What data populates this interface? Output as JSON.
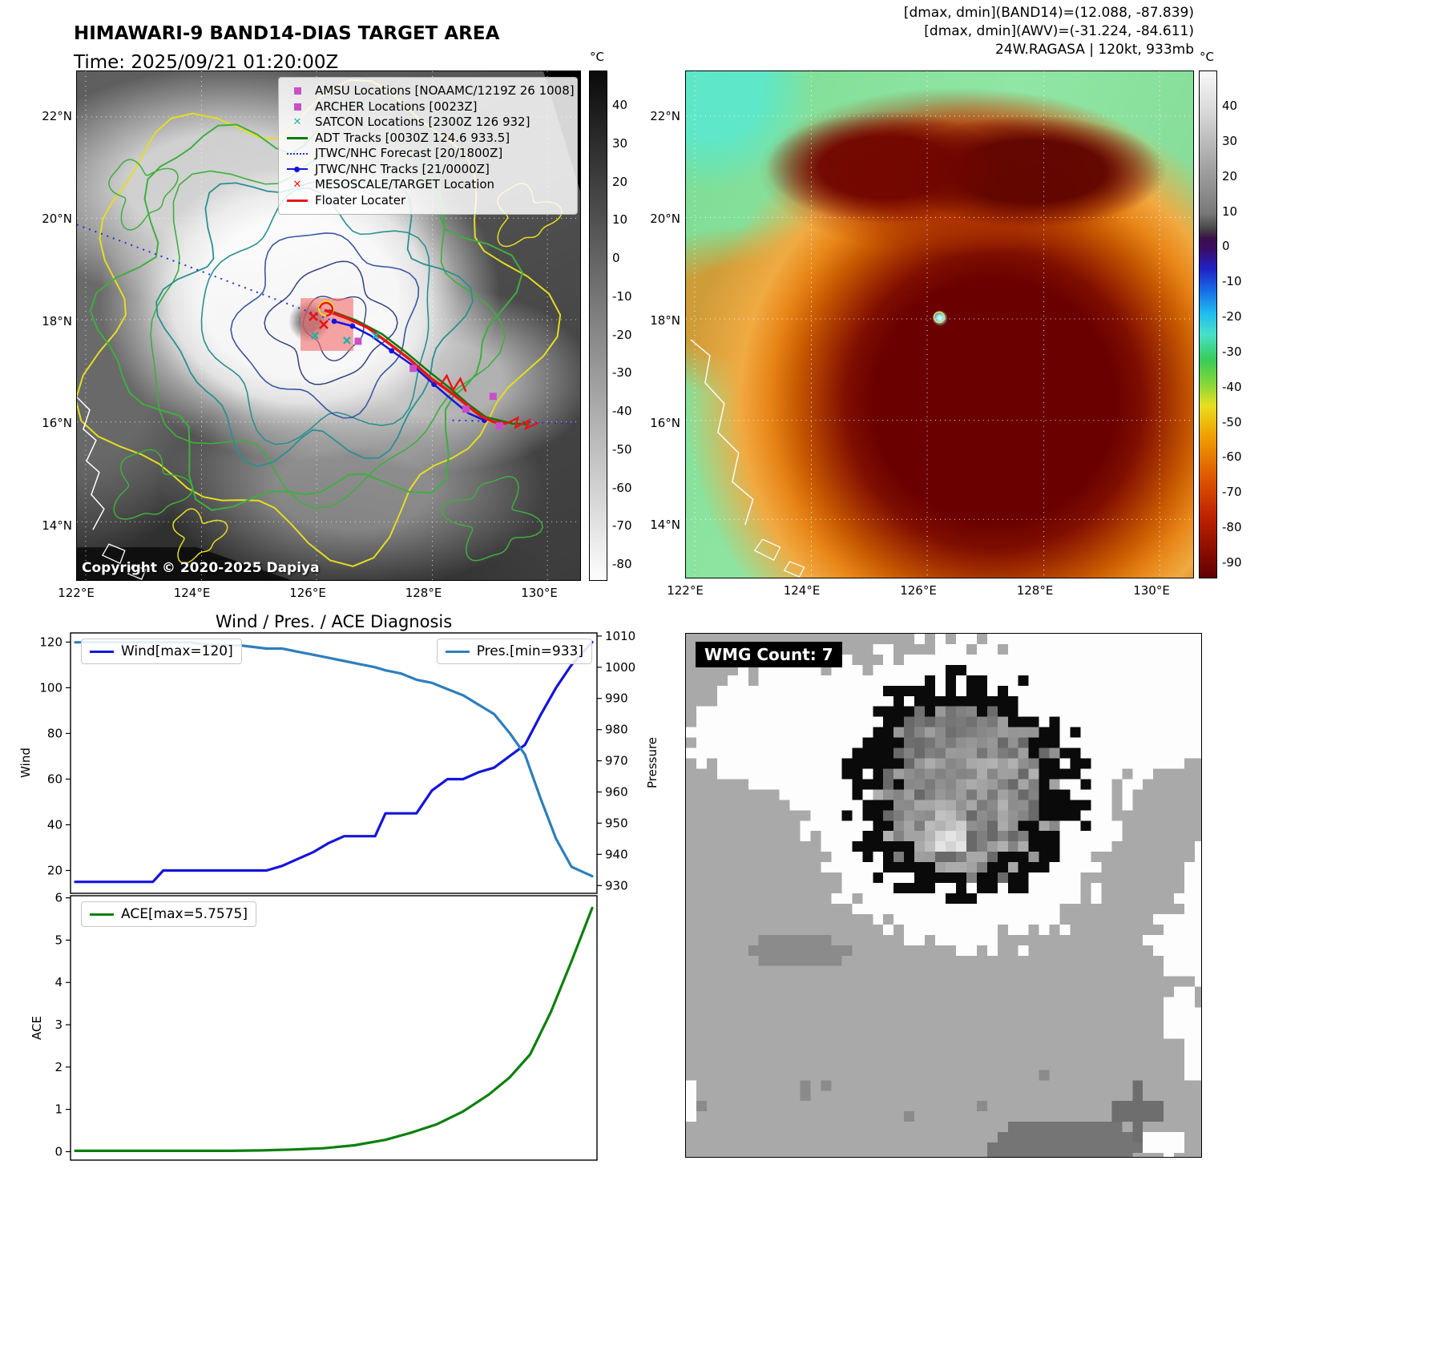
{
  "panelA": {
    "title": "HIMAWARI-9 BAND14-DIAS TARGET AREA",
    "time": "Time: 2025/09/21 01:20:00Z",
    "copyright": "Copyright © 2020-2025 Dapiya",
    "lat_ticks": [
      "22°N",
      "20°N",
      "18°N",
      "16°N",
      "14°N"
    ],
    "lon_ticks": [
      "122°E",
      "124°E",
      "126°E",
      "128°E",
      "130°E"
    ],
    "colorbar": {
      "unit": "°C",
      "ticks": [
        "40",
        "30",
        "20",
        "10",
        "0",
        "-10",
        "-20",
        "-30",
        "-40",
        "-50",
        "-60",
        "-70",
        "-80"
      ]
    },
    "legend": {
      "items": [
        {
          "label": "AMSU Locations [NOAAMC/1219Z 26 1008]",
          "marker": "square",
          "color": "#c94fc9"
        },
        {
          "label": "ARCHER Locations [0023Z]",
          "marker": "square",
          "color": "#c94fc9"
        },
        {
          "label": "SATCON Locations [2300Z 126 932]",
          "marker": "x",
          "color": "#20b2aa"
        },
        {
          "label": "ADT Tracks [0030Z 124.6 933.5]",
          "marker": "line",
          "color": "#0a7a0a"
        },
        {
          "label": "JTWC/NHC Forecast [20/1800Z]",
          "marker": "dotted",
          "color": "#2233cc"
        },
        {
          "label": "JTWC/NHC Tracks [21/0000Z]",
          "marker": "line-dot",
          "color": "#1414dc"
        },
        {
          "label": "MESOSCALE/TARGET Location",
          "marker": "x",
          "color": "#e81515"
        },
        {
          "label": "Floater Locater",
          "marker": "line",
          "color": "#e81515"
        }
      ]
    }
  },
  "panelB": {
    "title_lines": [
      "[dmax, dmin](BAND14)=(12.088, -87.839)",
      "[dmax, dmin](AWV)=(-31.224, -84.611)",
      "24W.RAGASA | 120kt, 933mb"
    ],
    "lat_ticks": [
      "22°N",
      "20°N",
      "18°N",
      "16°N",
      "14°N"
    ],
    "lon_ticks": [
      "122°E",
      "124°E",
      "126°E",
      "128°E",
      "130°E"
    ],
    "colorbar": {
      "unit": "°C",
      "ticks": [
        "40",
        "30",
        "20",
        "10",
        "0",
        "-10",
        "-20",
        "-30",
        "-40",
        "-50",
        "-60",
        "-70",
        "-80",
        "-90"
      ]
    }
  },
  "panelD": {
    "badge": "WMG Count: 7"
  },
  "chart_data": {
    "type": "line",
    "title": "Wind / Pres. / ACE Diagnosis",
    "charts": [
      {
        "name": "wind_pressure",
        "ylabel_left": "Wind",
        "ylabel_right": "Pressure",
        "ylim_left": [
          10,
          124
        ],
        "ylim_right": [
          927.5,
          1011
        ],
        "yticks_left": [
          20,
          40,
          60,
          80,
          100,
          120
        ],
        "yticks_right": [
          930,
          940,
          950,
          960,
          970,
          980,
          990,
          1000,
          1010
        ],
        "series": [
          {
            "name": "Wind[max=120]",
            "color": "#1414dc",
            "axis": "left",
            "x": [
              0,
              0.05,
              0.1,
              0.15,
              0.17,
              0.22,
              0.27,
              0.32,
              0.37,
              0.4,
              0.43,
              0.46,
              0.49,
              0.52,
              0.55,
              0.58,
              0.6,
              0.63,
              0.66,
              0.69,
              0.72,
              0.75,
              0.78,
              0.81,
              0.84,
              0.87,
              0.9,
              0.93,
              0.96,
              1.0
            ],
            "y": [
              15,
              15,
              15,
              15,
              20,
              20,
              20,
              20,
              20,
              22,
              25,
              28,
              32,
              35,
              35,
              35,
              45,
              45,
              45,
              55,
              60,
              60,
              63,
              65,
              70,
              75,
              88,
              100,
              110,
              120
            ]
          },
          {
            "name": "Pres.[min=933]",
            "color": "#2e7ebc",
            "axis": "right",
            "x": [
              0,
              0.05,
              0.1,
              0.15,
              0.17,
              0.22,
              0.27,
              0.32,
              0.37,
              0.4,
              0.43,
              0.46,
              0.49,
              0.52,
              0.55,
              0.58,
              0.6,
              0.63,
              0.66,
              0.69,
              0.72,
              0.75,
              0.78,
              0.81,
              0.84,
              0.87,
              0.9,
              0.93,
              0.96,
              1.0
            ],
            "y": [
              1008,
              1008,
              1008,
              1008,
              1008,
              1008,
              1007,
              1007,
              1006,
              1006,
              1005,
              1004,
              1003,
              1002,
              1001,
              1000,
              999,
              998,
              996,
              995,
              993,
              991,
              988,
              985,
              979,
              972,
              958,
              945,
              936,
              933
            ]
          }
        ]
      },
      {
        "name": "ace",
        "ylabel_left": "ACE",
        "ylim_left": [
          -0.2,
          6.05
        ],
        "yticks_left": [
          0,
          1,
          2,
          3,
          4,
          5,
          6
        ],
        "series": [
          {
            "name": "ACE[max=5.7575]",
            "color": "#0c800c",
            "axis": "left",
            "x": [
              0,
              0.06,
              0.12,
              0.18,
              0.24,
              0.3,
              0.36,
              0.42,
              0.48,
              0.54,
              0.6,
              0.65,
              0.7,
              0.75,
              0.8,
              0.84,
              0.88,
              0.92,
              0.96,
              1.0
            ],
            "y": [
              0.02,
              0.02,
              0.02,
              0.02,
              0.02,
              0.02,
              0.03,
              0.05,
              0.08,
              0.15,
              0.28,
              0.45,
              0.65,
              0.95,
              1.35,
              1.75,
              2.3,
              3.3,
              4.5,
              5.76
            ]
          }
        ]
      }
    ]
  }
}
